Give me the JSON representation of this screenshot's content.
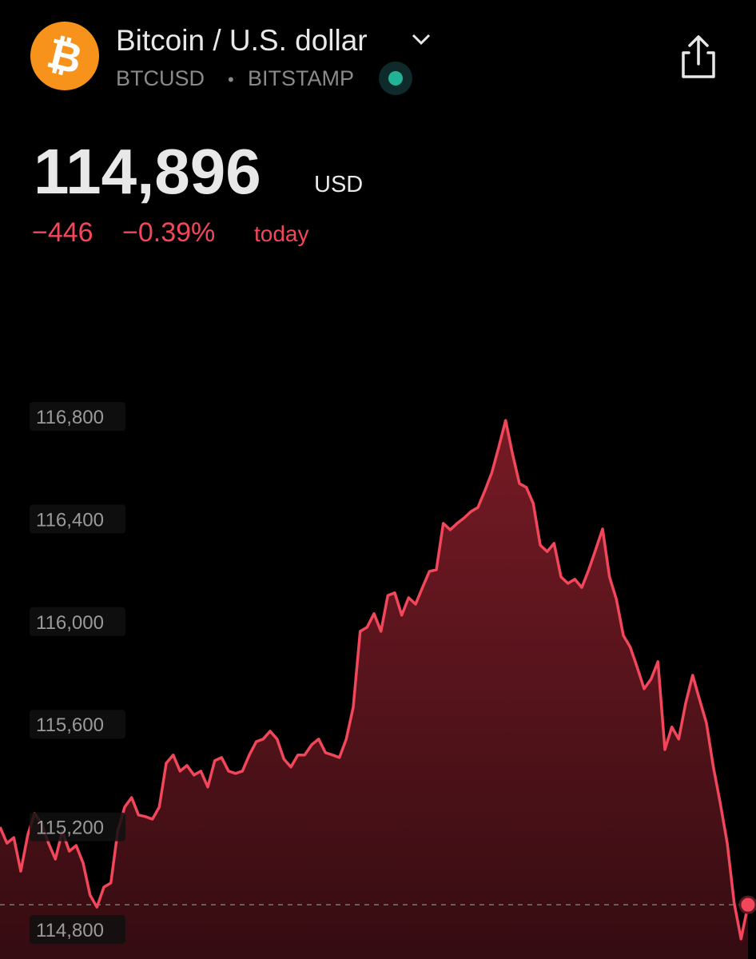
{
  "header": {
    "logo_symbol": "₿",
    "title": "Bitcoin / U.S. dollar",
    "ticker": "BTCUSD",
    "separator": "•",
    "exchange": "BITSTAMP",
    "price": "114,896",
    "currency": "USD",
    "change": "−446",
    "change_percent": "−0.39%",
    "change_period": "today"
  },
  "chart_data": {
    "type": "area",
    "color": "#f2475a",
    "values": [
      115199,
      115136,
      115158,
      115027,
      115168,
      115252,
      115214,
      115136,
      115074,
      115183,
      115105,
      115127,
      115059,
      114934,
      114887,
      114965,
      114981,
      115183,
      115277,
      115314,
      115246,
      115240,
      115230,
      115277,
      115448,
      115480,
      115417,
      115439,
      115402,
      115417,
      115355,
      115458,
      115470,
      115417,
      115408,
      115417,
      115480,
      115532,
      115542,
      115573,
      115542,
      115464,
      115433,
      115480,
      115480,
      115520,
      115542,
      115489,
      115480,
      115470,
      115542,
      115666,
      115962,
      115978,
      116031,
      115962,
      116102,
      116112,
      116025,
      116093,
      116068,
      116133,
      116196,
      116202,
      116383,
      116358,
      116383,
      116404,
      116429,
      116445,
      116510,
      116579,
      116679,
      116784,
      116654,
      116538,
      116523,
      116460,
      116298,
      116273,
      116305,
      116174,
      116149,
      116165,
      116133,
      116202,
      116280,
      116361,
      116174,
      116087,
      115946,
      115900,
      115822,
      115738,
      115776,
      115844,
      115501,
      115589,
      115542,
      115682,
      115791,
      115697,
      115604,
      115432,
      115292,
      115136,
      114903,
      114763,
      114896
    ],
    "ylim": [
      114800,
      116800
    ],
    "yticks": [
      {
        "value": 116800,
        "label": "116,800"
      },
      {
        "value": 116400,
        "label": "116,400"
      },
      {
        "value": 116000,
        "label": "116,000"
      },
      {
        "value": 115600,
        "label": "115,600"
      },
      {
        "value": 115200,
        "label": "115,200"
      },
      {
        "value": 114800,
        "label": "114,800"
      }
    ]
  }
}
